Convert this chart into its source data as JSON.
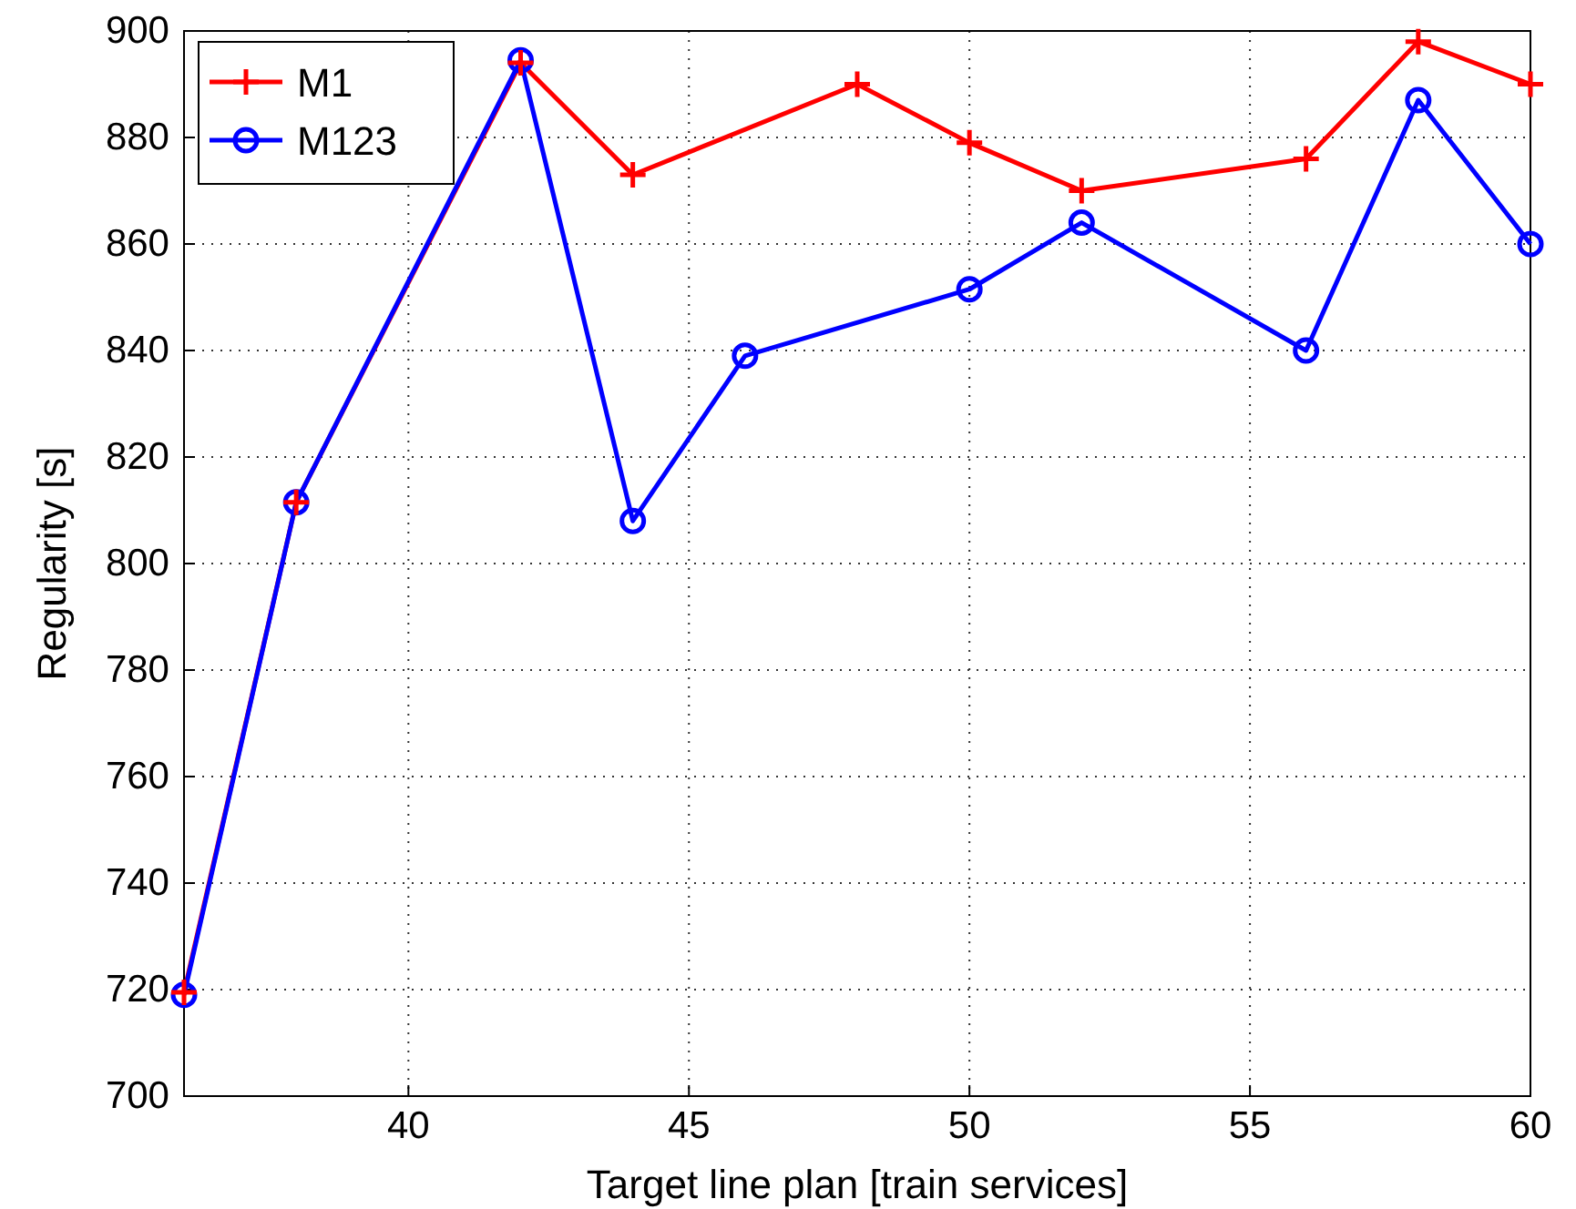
{
  "chart_data": {
    "type": "line",
    "xlabel": "Target line plan [train services]",
    "ylabel": "Regularity [s]",
    "xlim": [
      36,
      60
    ],
    "xticks": [
      40,
      45,
      50,
      55,
      60
    ],
    "ylim": [
      700,
      900
    ],
    "yticks": [
      700,
      720,
      740,
      760,
      780,
      800,
      820,
      840,
      860,
      880,
      900
    ],
    "grid": true,
    "legend": "top left",
    "series": [
      {
        "name": "M1",
        "color": "#ff0000",
        "marker": "cross",
        "x": [
          36,
          38,
          42,
          44,
          48,
          50,
          52,
          56,
          58,
          60
        ],
        "values": [
          719.5,
          811.5,
          894,
          873,
          890,
          879,
          870,
          876,
          898,
          890
        ]
      },
      {
        "name": "M123",
        "color": "#0000ff",
        "marker": "circle",
        "x": [
          36,
          38,
          42,
          44,
          46,
          50,
          52,
          56,
          58,
          60
        ],
        "values": [
          719,
          811.5,
          894.5,
          808,
          839,
          851.5,
          864,
          840,
          887,
          860
        ]
      }
    ]
  }
}
